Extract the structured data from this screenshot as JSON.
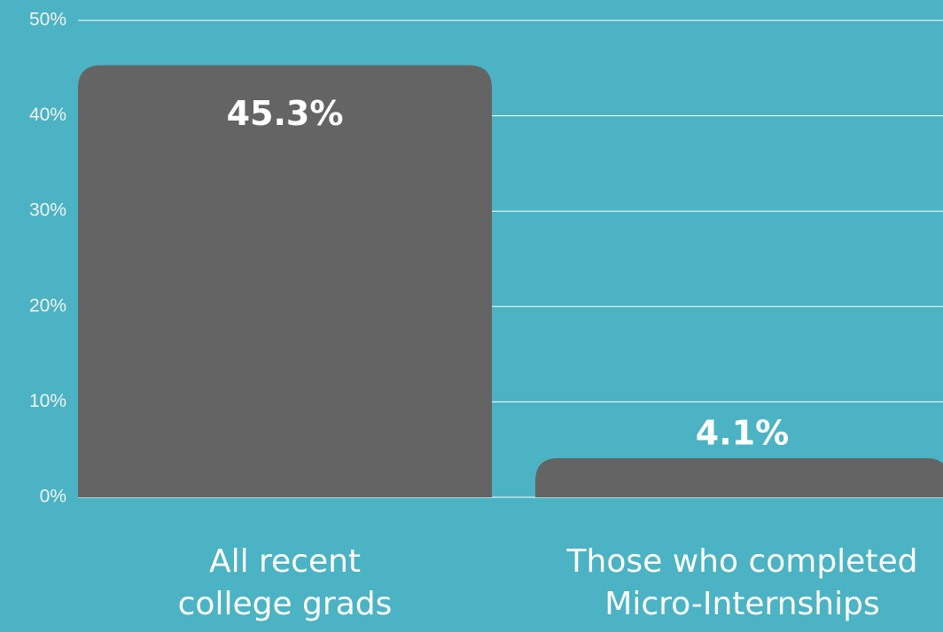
{
  "chart_data": {
    "type": "bar",
    "categories": [
      "All recent college grads",
      "Those who completed Micro-Internships"
    ],
    "values": [
      45.3,
      4.1
    ],
    "value_labels": [
      "45.3%",
      "4.1%"
    ],
    "color": "#646464",
    "ylim": [
      0,
      50
    ],
    "yticks": [
      {
        "value": 0,
        "label": "0%"
      },
      {
        "value": 10,
        "label": "10%"
      },
      {
        "value": 20,
        "label": "20%"
      },
      {
        "value": 30,
        "label": "30%"
      },
      {
        "value": 40,
        "label": "40%"
      },
      {
        "value": 50,
        "label": "50%"
      }
    ],
    "grid": true
  }
}
